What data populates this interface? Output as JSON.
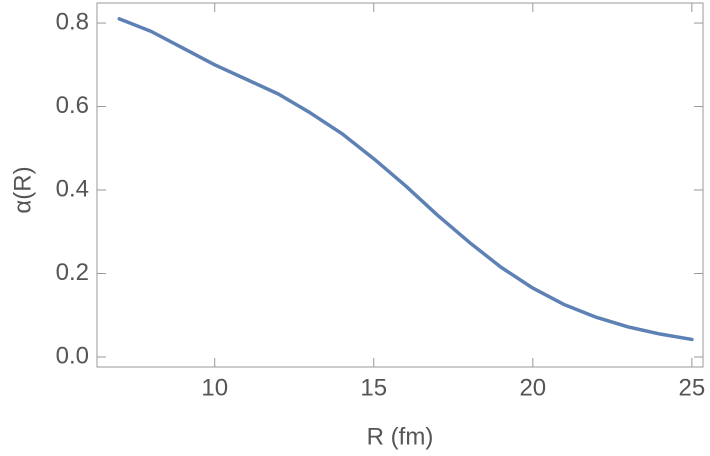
{
  "chart_data": {
    "type": "line",
    "xlabel": "R (fm)",
    "ylabel": "α(R)",
    "x": [
      7,
      8,
      9,
      10,
      11,
      12,
      13,
      14,
      15,
      16,
      17,
      18,
      19,
      20,
      21,
      22,
      23,
      24,
      25
    ],
    "series": [
      {
        "color": "#5e81b5",
        "values": [
          0.81,
          0.78,
          0.74,
          0.7,
          0.665,
          0.63,
          0.585,
          0.535,
          0.475,
          0.41,
          0.34,
          0.275,
          0.215,
          0.165,
          0.125,
          0.095,
          0.072,
          0.055,
          0.042
        ]
      }
    ],
    "xlim": [
      6.3,
      25.35
    ],
    "ylim": [
      -0.024,
      0.848
    ],
    "xticks": [
      10,
      15,
      20,
      25
    ],
    "yticks": [
      {
        "value": 0,
        "label": "0.0"
      },
      0.2,
      0.4,
      0.6,
      0.8
    ],
    "grid": false
  }
}
